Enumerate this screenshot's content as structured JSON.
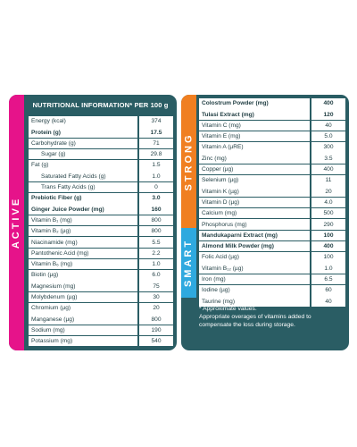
{
  "left_panel": {
    "side_label": "ACTIVE",
    "header": "NUTRITIONAL INFORMATION* PER 100 g",
    "rows": [
      {
        "name": "Energy (kcal)",
        "value": "374",
        "bold": false,
        "indent": false
      },
      {
        "name": "Protein (g)",
        "value": "17.5",
        "bold": true,
        "indent": false
      },
      {
        "name": "Carbohydrate (g)",
        "value": "71",
        "bold": false,
        "indent": false
      },
      {
        "name": "Sugar (g)",
        "value": "29.8",
        "bold": false,
        "indent": true
      },
      {
        "name": "Fat (g)",
        "value": "1.5",
        "bold": false,
        "indent": false
      },
      {
        "name": "Saturated Fatty Acids (g)",
        "value": "1.0",
        "bold": false,
        "indent": true
      },
      {
        "name": "Trans Fatty Acids (g)",
        "value": "0",
        "bold": false,
        "indent": true
      },
      {
        "name": "Prebiotic Fiber (g)",
        "value": "3.0",
        "bold": true,
        "indent": false
      },
      {
        "name": "Ginger Juice Powder (mg)",
        "value": "160",
        "bold": true,
        "indent": false
      },
      {
        "name": "Vitamin B₁ (mg)",
        "value": "800",
        "bold": false,
        "indent": false
      },
      {
        "name": "Vitamin B₂ (µg)",
        "value": "800",
        "bold": false,
        "indent": false
      },
      {
        "name": "Niacinamide (mg)",
        "value": "5.5",
        "bold": false,
        "indent": false
      },
      {
        "name": "Pantothenic Acid (mg)",
        "value": "2.2",
        "bold": false,
        "indent": false
      },
      {
        "name": "Vitamin B₆ (mg)",
        "value": "1.0",
        "bold": false,
        "indent": false
      },
      {
        "name": "Biotin (µg)",
        "value": "6.0",
        "bold": false,
        "indent": false
      },
      {
        "name": "Magnesium (mg)",
        "value": "75",
        "bold": false,
        "indent": false
      },
      {
        "name": "Molybdenum (µg)",
        "value": "30",
        "bold": false,
        "indent": false
      },
      {
        "name": "Chromium (µg)",
        "value": "20",
        "bold": false,
        "indent": false
      },
      {
        "name": "Manganese (µg)",
        "value": "800",
        "bold": false,
        "indent": false
      },
      {
        "name": "Sodium (mg)",
        "value": "190",
        "bold": false,
        "indent": false
      },
      {
        "name": "Potassium (mg)",
        "value": "540",
        "bold": false,
        "indent": false
      }
    ]
  },
  "right_panel": {
    "strong_label": "STRONG",
    "smart_label": "SMART",
    "rows": [
      {
        "name": "Colostrum Powder (mg)",
        "value": "400",
        "bold": true
      },
      {
        "name": "Tulasi Extract (mg)",
        "value": "120",
        "bold": true
      },
      {
        "name": "Vitamin C (mg)",
        "value": "40",
        "bold": false
      },
      {
        "name": "Vitamin E (mg)",
        "value": "5.0",
        "bold": false
      },
      {
        "name": "Vitamin A (µRE)",
        "value": "300",
        "bold": false
      },
      {
        "name": "Zinc (mg)",
        "value": "3.5",
        "bold": false
      },
      {
        "name": "Copper (µg)",
        "value": "400",
        "bold": false
      },
      {
        "name": "Selenium (µg)",
        "value": "11",
        "bold": false
      },
      {
        "name": "Vitamin K (µg)",
        "value": "20",
        "bold": false
      },
      {
        "name": "Vitamin D (µg)",
        "value": "4.0",
        "bold": false
      },
      {
        "name": "Calcium (mg)",
        "value": "500",
        "bold": false
      },
      {
        "name": "Phosphorus (mg)",
        "value": "290",
        "bold": false
      },
      {
        "name": "Mandukaparni Extract (mg)",
        "value": "100",
        "bold": true
      },
      {
        "name": "Almond Milk Powder (mg)",
        "value": "400",
        "bold": true
      },
      {
        "name": "Folic Acid (µg)",
        "value": "100",
        "bold": false
      },
      {
        "name": "Vitamin B₁₂ (µg)",
        "value": "1.0",
        "bold": false
      },
      {
        "name": "Iron (mg)",
        "value": "6.5",
        "bold": false
      },
      {
        "name": "Iodine (µg)",
        "value": "60",
        "bold": false
      },
      {
        "name": "Taurine (mg)",
        "value": "40",
        "bold": false
      }
    ],
    "footnote_1": "* Approximate values.",
    "footnote_2": "Appropriate overages of vitamins added to compensate the loss during storage."
  },
  "colors": {
    "card_bg": "#2a5d64",
    "active": "#e6138a",
    "strong": "#f07f21",
    "smart": "#2ea9df"
  }
}
